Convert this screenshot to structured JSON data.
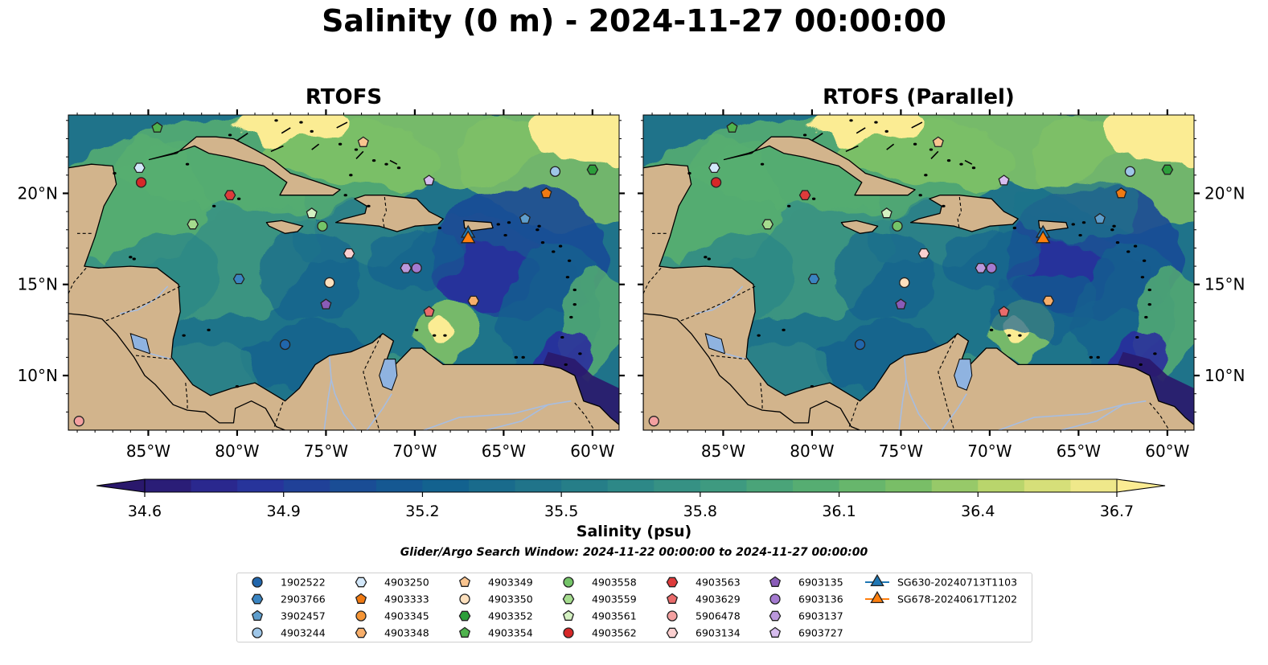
{
  "title": "Salinity (0 m) - 2024-11-27 00:00:00",
  "panels": [
    {
      "title": "RTOFS"
    },
    {
      "title": "RTOFS (Parallel)"
    }
  ],
  "axes": {
    "lon_ticks": [
      {
        "value": -85,
        "label": "85°W"
      },
      {
        "value": -80,
        "label": "80°W"
      },
      {
        "value": -75,
        "label": "75°W"
      },
      {
        "value": -70,
        "label": "70°W"
      },
      {
        "value": -65,
        "label": "65°W"
      },
      {
        "value": -60,
        "label": "60°W"
      }
    ],
    "lat_ticks": [
      {
        "value": 10,
        "label": "10°N"
      },
      {
        "value": 15,
        "label": "15°N"
      },
      {
        "value": 20,
        "label": "20°N"
      }
    ],
    "lon_range": [
      -89.5,
      -58.5
    ],
    "lat_range": [
      7,
      24.3
    ]
  },
  "colorbar": {
    "label": "Salinity (psu)",
    "min": 34.6,
    "max": 36.7,
    "tick_labels": [
      "34.6",
      "34.9",
      "35.2",
      "35.5",
      "35.8",
      "36.1",
      "36.4",
      "36.7"
    ],
    "extend": "both",
    "colormap_stops": [
      "#2a186c",
      "#2a2f9c",
      "#1b4a96",
      "#12608f",
      "#1f738a",
      "#2d8887",
      "#3f9b80",
      "#58af70",
      "#7fc166",
      "#c7da6e",
      "#fbec93"
    ]
  },
  "search_window": "Glider/Argo Search Window: 2024-11-22 00:00:00 to 2024-11-27 00:00:00",
  "colors": {
    "land": "#d2b48c",
    "lake": "#8fb3e0",
    "river": "#a7bde0",
    "ocean_pacific": "#28196a"
  },
  "legend": [
    {
      "label": "1902522",
      "marker": "circle",
      "color": "#2166ac"
    },
    {
      "label": "2903766",
      "marker": "hexagon",
      "color": "#3a84c1"
    },
    {
      "label": "3902457",
      "marker": "pentagon",
      "color": "#5e9ecd"
    },
    {
      "label": "4903244",
      "marker": "circle",
      "color": "#9ec6e8"
    },
    {
      "label": "4903250",
      "marker": "hexagon",
      "color": "#d3e8fa"
    },
    {
      "label": "4903333",
      "marker": "pentagon",
      "color": "#f07a12"
    },
    {
      "label": "4903345",
      "marker": "circle",
      "color": "#f59535"
    },
    {
      "label": "4903348",
      "marker": "hexagon",
      "color": "#f7ae6a"
    },
    {
      "label": "4903349",
      "marker": "pentagon",
      "color": "#f9c48f"
    },
    {
      "label": "4903350",
      "marker": "circle",
      "color": "#fde0bd"
    },
    {
      "label": "4903352",
      "marker": "hexagon",
      "color": "#2c9e3a"
    },
    {
      "label": "4903354",
      "marker": "pentagon",
      "color": "#4fb34d"
    },
    {
      "label": "4903558",
      "marker": "circle",
      "color": "#74c468"
    },
    {
      "label": "4903559",
      "marker": "hexagon",
      "color": "#a5dc8e"
    },
    {
      "label": "4903561",
      "marker": "pentagon",
      "color": "#d4f1c2"
    },
    {
      "label": "4903562",
      "marker": "circle",
      "color": "#d62728"
    },
    {
      "label": "4903563",
      "marker": "hexagon",
      "color": "#de3b3b"
    },
    {
      "label": "4903629",
      "marker": "pentagon",
      "color": "#ea6b6b"
    },
    {
      "label": "5906478",
      "marker": "circle",
      "color": "#f4a0a0"
    },
    {
      "label": "6903134",
      "marker": "hexagon",
      "color": "#fbd0d0"
    },
    {
      "label": "6903135",
      "marker": "pentagon",
      "color": "#8a5cb8"
    },
    {
      "label": "6903136",
      "marker": "circle",
      "color": "#a47ad0"
    },
    {
      "label": "6903137",
      "marker": "hexagon",
      "color": "#bb98dc"
    },
    {
      "label": "6903727",
      "marker": "pentagon",
      "color": "#d7bdef"
    },
    {
      "label": "SG630-20240713T1103",
      "marker": "triangle-line",
      "color": "#1f77b4"
    },
    {
      "label": "SG678-20240617T1202",
      "marker": "triangle-line",
      "color": "#ff7f0e"
    }
  ],
  "observations": [
    {
      "id": "4903354",
      "lon": -84.5,
      "lat": 23.6
    },
    {
      "id": "4903349",
      "lon": -72.9,
      "lat": 22.8
    },
    {
      "id": "4903250",
      "lon": -85.5,
      "lat": 21.4
    },
    {
      "id": "4903562",
      "lon": -85.4,
      "lat": 20.6
    },
    {
      "id": "4903563",
      "lon": -80.4,
      "lat": 19.9
    },
    {
      "id": "6903727",
      "lon": -69.2,
      "lat": 20.7
    },
    {
      "id": "4903244",
      "lon": -62.1,
      "lat": 21.2
    },
    {
      "id": "4903352",
      "lon": -60.0,
      "lat": 21.3
    },
    {
      "id": "4903333",
      "lon": -62.6,
      "lat": 20.0
    },
    {
      "id": "4903559",
      "lon": -82.5,
      "lat": 18.3
    },
    {
      "id": "4903561",
      "lon": -75.8,
      "lat": 18.9
    },
    {
      "id": "4903558",
      "lon": -75.2,
      "lat": 18.2
    },
    {
      "id": "3902457",
      "lon": -63.8,
      "lat": 18.6
    },
    {
      "id": "6903134",
      "lon": -73.7,
      "lat": 16.7
    },
    {
      "id": "6903137",
      "lon": -70.5,
      "lat": 15.9
    },
    {
      "id": "6903136",
      "lon": -69.9,
      "lat": 15.9
    },
    {
      "id": "2903766",
      "lon": -79.9,
      "lat": 15.3
    },
    {
      "id": "4903350",
      "lon": -74.8,
      "lat": 15.1
    },
    {
      "id": "6903135",
      "lon": -75.0,
      "lat": 13.9
    },
    {
      "id": "4903348",
      "lon": -66.7,
      "lat": 14.1
    },
    {
      "id": "4903629",
      "lon": -69.2,
      "lat": 13.5
    },
    {
      "id": "1902522",
      "lon": -77.3,
      "lat": 11.7
    },
    {
      "id": "5906478",
      "lon": -88.9,
      "lat": 7.5
    },
    {
      "id": "SG630-20240713T1103",
      "lon": -67.0,
      "lat": 17.8
    },
    {
      "id": "SG678-20240617T1202",
      "lon": -67.0,
      "lat": 17.5
    }
  ]
}
